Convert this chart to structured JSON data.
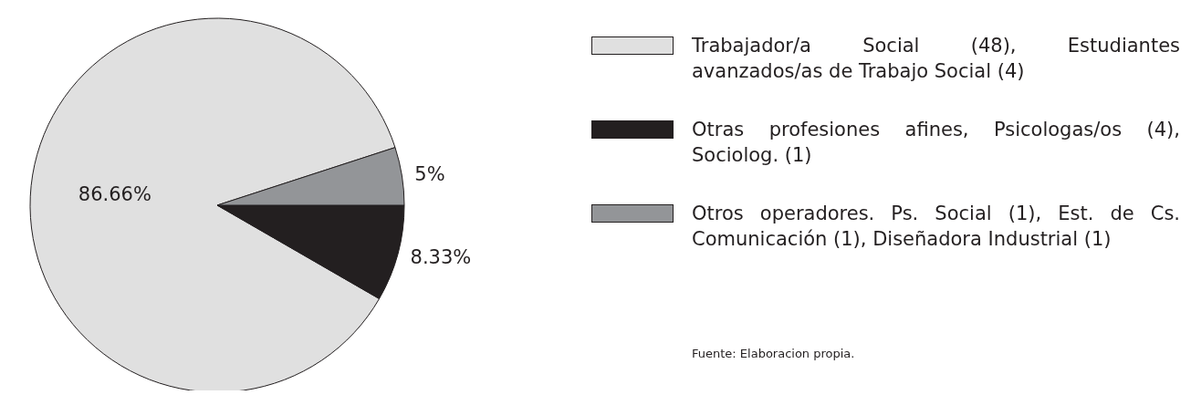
{
  "chart_data": {
    "type": "pie",
    "categories": [
      "Trabajador/a Social (48), Estudiantes avanzados/as de Trabajo Social (4)",
      "Otras profesiones afines, Psicologas/os (4), Sociolog. (1)",
      "Otros operadores. Ps. Social (1), Est. de Cs. Comunicación (1), Diseñadora Industrial (1)"
    ],
    "values": [
      86.66,
      8.33,
      5
    ],
    "colors": [
      "#e0e0e0",
      "#231f20",
      "#939598"
    ],
    "value_labels": [
      "86.66%",
      "8.33%",
      "5%"
    ],
    "legend": "right",
    "annotations": [
      "Fuente: Elaboracion propia."
    ]
  }
}
